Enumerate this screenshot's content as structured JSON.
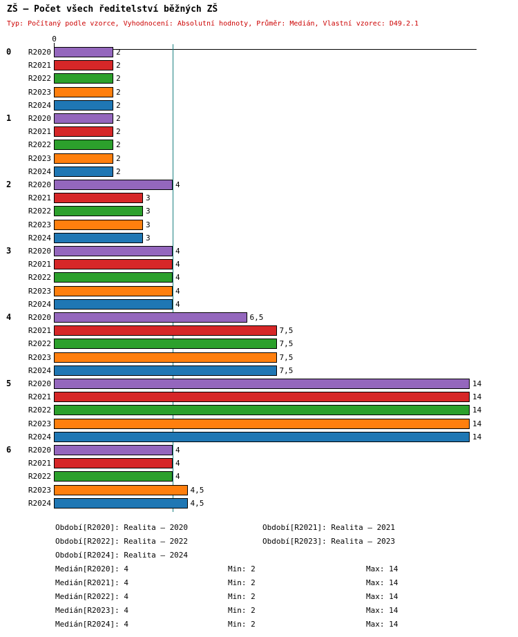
{
  "title": "ZŠ – Počet všech ředitelství běžných ZŠ",
  "subtitle": "Typ: Počítaný podle vzorce, Vyhodnocení: Absolutní hodnoty, Průměr: Medián, Vlastní vzorec: D49.2.1",
  "chart_data": {
    "type": "bar",
    "orientation": "horizontal",
    "title": "ZŠ – Počet všech ředitelství běžných ZŠ",
    "categories": [
      "0",
      "1",
      "2",
      "3",
      "4",
      "5",
      "6"
    ],
    "series": [
      {
        "name": "R2020",
        "color": "#9467bd",
        "values": [
          2,
          2,
          4,
          4,
          6.5,
          14,
          4
        ],
        "value_labels": [
          "2",
          "2",
          "4",
          "4",
          "6,5",
          "14",
          "4"
        ]
      },
      {
        "name": "R2021",
        "color": "#d62728",
        "values": [
          2,
          2,
          3,
          4,
          7.5,
          14,
          4
        ],
        "value_labels": [
          "2",
          "2",
          "3",
          "4",
          "7,5",
          "14",
          "4"
        ]
      },
      {
        "name": "R2022",
        "color": "#2ca02c",
        "values": [
          2,
          2,
          3,
          4,
          7.5,
          14,
          4
        ],
        "value_labels": [
          "2",
          "2",
          "3",
          "4",
          "7,5",
          "14",
          "4"
        ]
      },
      {
        "name": "R2023",
        "color": "#ff7f0e",
        "values": [
          2,
          2,
          3,
          4,
          7.5,
          14,
          4.5
        ],
        "value_labels": [
          "2",
          "2",
          "3",
          "4",
          "7,5",
          "14",
          "4,5"
        ]
      },
      {
        "name": "R2024",
        "color": "#1f77b4",
        "values": [
          2,
          2,
          3,
          4,
          7.5,
          14,
          4.5
        ],
        "value_labels": [
          "2",
          "2",
          "3",
          "4",
          "7,5",
          "14",
          "4,5"
        ]
      }
    ],
    "xlim": [
      0,
      14.3
    ],
    "axis_zero_label": "0",
    "median_line_value": 4,
    "median_line_color": "#1a8080",
    "grid": false,
    "legend_position": "none"
  },
  "footer": {
    "periods": [
      "Období[R2020]: Realita – 2020",
      "Období[R2021]: Realita – 2021",
      "Období[R2022]: Realita – 2022",
      "Období[R2023]: Realita – 2023",
      "Období[R2024]: Realita – 2024"
    ],
    "stats": [
      {
        "median": "Medián[R2020]: 4",
        "min": "Min: 2",
        "max": "Max: 14"
      },
      {
        "median": "Medián[R2021]: 4",
        "min": "Min: 2",
        "max": "Max: 14"
      },
      {
        "median": "Medián[R2022]: 4",
        "min": "Min: 2",
        "max": "Max: 14"
      },
      {
        "median": "Medián[R2023]: 4",
        "min": "Min: 2",
        "max": "Max: 14"
      },
      {
        "median": "Medián[R2024]: 4",
        "min": "Min: 2",
        "max": "Max: 14"
      }
    ]
  }
}
